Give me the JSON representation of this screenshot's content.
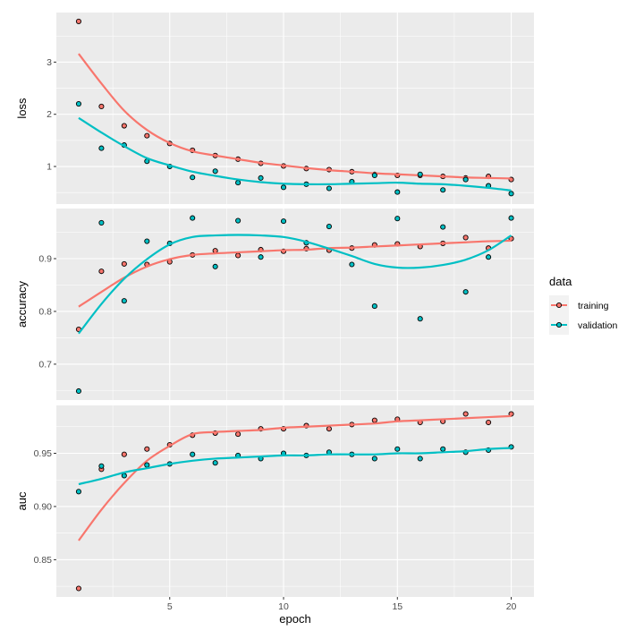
{
  "chart_data": {
    "type": "scatter",
    "xlabel": "epoch",
    "xlim": [
      0.02,
      21.0
    ],
    "x_ticks": [
      5,
      10,
      15,
      20
    ],
    "x": [
      1,
      2,
      3,
      4,
      5,
      6,
      7,
      8,
      9,
      10,
      11,
      12,
      13,
      14,
      15,
      16,
      17,
      18,
      19,
      20
    ],
    "legend": {
      "title": "data",
      "placement": "right",
      "entries": [
        "training",
        "validation"
      ]
    },
    "colors": {
      "training": "#F8766D",
      "validation": "#00BFC4",
      "panel": "#EBEBEB",
      "grid": "#FFFFFF"
    },
    "grid": true,
    "panels": [
      {
        "ylabel": "loss",
        "ylim": [
          0.28,
          3.95
        ],
        "y_ticks": [
          1,
          2,
          3
        ],
        "y_tick_labels": [
          "1",
          "2",
          "3"
        ],
        "series": [
          {
            "name": "training",
            "values": [
              3.78,
              2.15,
              1.78,
              1.59,
              1.44,
              1.31,
              1.21,
              1.14,
              1.06,
              1.01,
              0.96,
              0.94,
              0.9,
              0.85,
              0.83,
              0.83,
              0.81,
              0.78,
              0.81,
              0.75
            ],
            "smooth": [
              3.16,
              2.59,
              2.07,
              1.7,
              1.45,
              1.29,
              1.21,
              1.14,
              1.07,
              1.02,
              0.97,
              0.93,
              0.9,
              0.87,
              0.85,
              0.83,
              0.81,
              0.79,
              0.78,
              0.77
            ]
          },
          {
            "name": "validation",
            "values": [
              2.2,
              1.35,
              1.41,
              1.1,
              1.0,
              0.79,
              0.91,
              0.69,
              0.78,
              0.6,
              0.66,
              0.58,
              0.71,
              0.83,
              0.51,
              0.85,
              0.55,
              0.75,
              0.63,
              0.48
            ],
            "smooth": [
              1.93,
              1.65,
              1.39,
              1.16,
              1.02,
              0.9,
              0.82,
              0.75,
              0.7,
              0.67,
              0.66,
              0.66,
              0.67,
              0.68,
              0.69,
              0.67,
              0.66,
              0.63,
              0.59,
              0.54
            ]
          }
        ]
      },
      {
        "ylabel": "accuracy",
        "ylim": [
          0.632,
          0.995
        ],
        "y_ticks": [
          0.7,
          0.8,
          0.9
        ],
        "y_tick_labels": [
          "0.7",
          "0.8",
          "0.9"
        ],
        "series": [
          {
            "name": "training",
            "values": [
              0.766,
              0.876,
              0.89,
              0.889,
              0.894,
              0.907,
              0.915,
              0.906,
              0.917,
              0.914,
              0.919,
              0.916,
              0.92,
              0.926,
              0.928,
              0.923,
              0.929,
              0.94,
              0.92,
              0.938
            ],
            "smooth": [
              0.809,
              0.837,
              0.864,
              0.885,
              0.899,
              0.907,
              0.91,
              0.912,
              0.914,
              0.916,
              0.917,
              0.92,
              0.921,
              0.923,
              0.925,
              0.927,
              0.929,
              0.931,
              0.933,
              0.934
            ]
          },
          {
            "name": "validation",
            "values": [
              0.649,
              0.968,
              0.82,
              0.933,
              0.929,
              0.977,
              0.885,
              0.972,
              0.903,
              0.971,
              0.93,
              0.961,
              0.889,
              0.81,
              0.976,
              0.786,
              0.96,
              0.837,
              0.903,
              0.977
            ],
            "smooth": [
              0.758,
              0.814,
              0.862,
              0.899,
              0.927,
              0.941,
              0.944,
              0.945,
              0.944,
              0.941,
              0.932,
              0.919,
              0.905,
              0.89,
              0.883,
              0.883,
              0.888,
              0.898,
              0.916,
              0.944
            ]
          }
        ]
      },
      {
        "ylabel": "auc",
        "ylim": [
          0.815,
          0.995
        ],
        "y_ticks": [
          0.85,
          0.9,
          0.95
        ],
        "y_tick_labels": [
          "0.85",
          "0.90",
          "0.95"
        ],
        "series": [
          {
            "name": "training",
            "values": [
              0.823,
              0.935,
              0.949,
              0.954,
              0.958,
              0.967,
              0.969,
              0.968,
              0.973,
              0.973,
              0.976,
              0.973,
              0.977,
              0.981,
              0.982,
              0.979,
              0.98,
              0.987,
              0.979,
              0.987
            ],
            "smooth": [
              0.868,
              0.897,
              0.922,
              0.943,
              0.957,
              0.968,
              0.97,
              0.971,
              0.972,
              0.974,
              0.975,
              0.976,
              0.977,
              0.978,
              0.98,
              0.981,
              0.982,
              0.983,
              0.984,
              0.985
            ]
          },
          {
            "name": "validation",
            "values": [
              0.914,
              0.938,
              0.929,
              0.939,
              0.94,
              0.949,
              0.941,
              0.948,
              0.945,
              0.95,
              0.948,
              0.951,
              0.949,
              0.945,
              0.954,
              0.945,
              0.954,
              0.951,
              0.953,
              0.956
            ],
            "smooth": [
              0.921,
              0.926,
              0.932,
              0.936,
              0.94,
              0.943,
              0.945,
              0.946,
              0.947,
              0.948,
              0.948,
              0.949,
              0.949,
              0.949,
              0.95,
              0.95,
              0.951,
              0.952,
              0.954,
              0.955
            ]
          }
        ]
      }
    ]
  }
}
